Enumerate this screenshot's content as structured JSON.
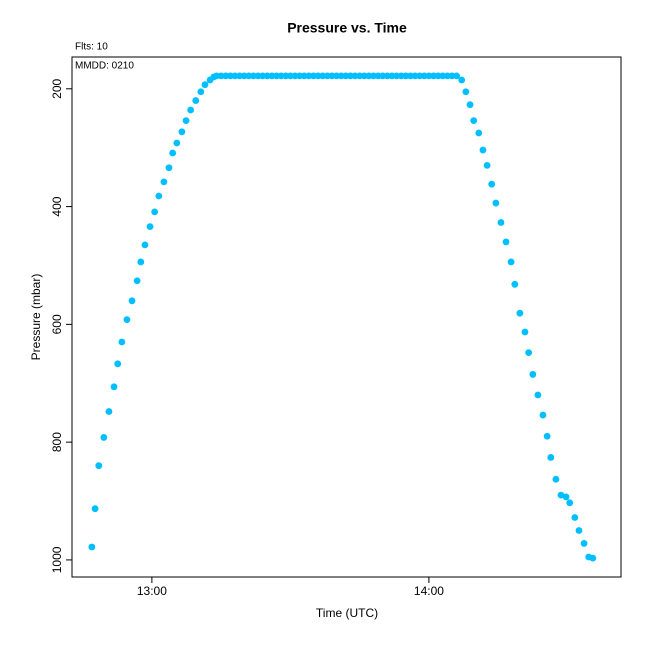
{
  "chart_data": {
    "type": "scatter",
    "title": "Pressure  vs. Time",
    "annotations": [
      "Flts: 10",
      "MMDD: 0210"
    ],
    "xlabel": "Time (UTC)",
    "ylabel": "Pressure (mbar)",
    "color": "#00bfff",
    "xlim": [
      762.7,
      881.6
    ],
    "xticks": [
      {
        "value": 780,
        "label": "13:00"
      },
      {
        "value": 840,
        "label": "14:00"
      }
    ],
    "ylim": [
      1029,
      146
    ],
    "yticks": [
      200,
      400,
      600,
      800,
      1000
    ],
    "x": [
      767.0,
      767.7,
      768.5,
      769.6,
      770.7,
      771.8,
      772.6,
      773.5,
      774.6,
      775.7,
      776.8,
      777.6,
      778.5,
      779.6,
      780.6,
      781.5,
      782.6,
      783.7,
      784.5,
      785.4,
      786.5,
      787.4,
      788.4,
      789.5,
      790.6,
      791.5,
      792.6,
      793.4,
      794,
      795,
      796,
      797,
      798,
      799,
      800,
      801,
      802,
      803,
      804,
      805,
      806,
      807,
      808,
      809,
      810,
      811,
      812,
      813,
      814,
      815,
      816,
      817,
      818,
      819,
      820,
      821,
      822,
      823,
      824,
      825,
      826,
      827,
      828,
      829,
      830,
      831,
      832,
      833,
      834,
      835,
      836,
      837,
      838,
      839,
      840,
      841,
      842,
      843,
      844,
      845,
      846,
      847.1,
      848.0,
      848.9,
      849.7,
      850.8,
      851.7,
      852.6,
      853.6,
      854.5,
      855.6,
      856.7,
      857.8,
      858.6,
      859.7,
      860.8,
      861.6,
      862.5,
      863.6,
      864.7,
      865.6,
      866.4,
      867.5,
      868.6,
      869.7,
      870.5,
      871.6,
      872.5,
      873.6,
      874.6,
      875.5
    ],
    "values": [
      978,
      913,
      840,
      792,
      748,
      706,
      667,
      630,
      592,
      560,
      526,
      494,
      465,
      434,
      409,
      382,
      358,
      334,
      309,
      292,
      273,
      254,
      236,
      220,
      205,
      193,
      185,
      180,
      178,
      178,
      178,
      178,
      178,
      178,
      178,
      178,
      178,
      178,
      178,
      178,
      178,
      178,
      178,
      178,
      178,
      178,
      178,
      178,
      178,
      178,
      178,
      178,
      178,
      178,
      178,
      178,
      178,
      178,
      178,
      178,
      178,
      178,
      178,
      178,
      178,
      178,
      178,
      178,
      178,
      178,
      178,
      178,
      178,
      178,
      178,
      178,
      178,
      178,
      178,
      178,
      178,
      185,
      205,
      227,
      254,
      275,
      304,
      330,
      362,
      394,
      427,
      460,
      494,
      532,
      581,
      613,
      648,
      685,
      720,
      754,
      790,
      826,
      863,
      890,
      893,
      903,
      928,
      950,
      972,
      995,
      997
    ]
  }
}
